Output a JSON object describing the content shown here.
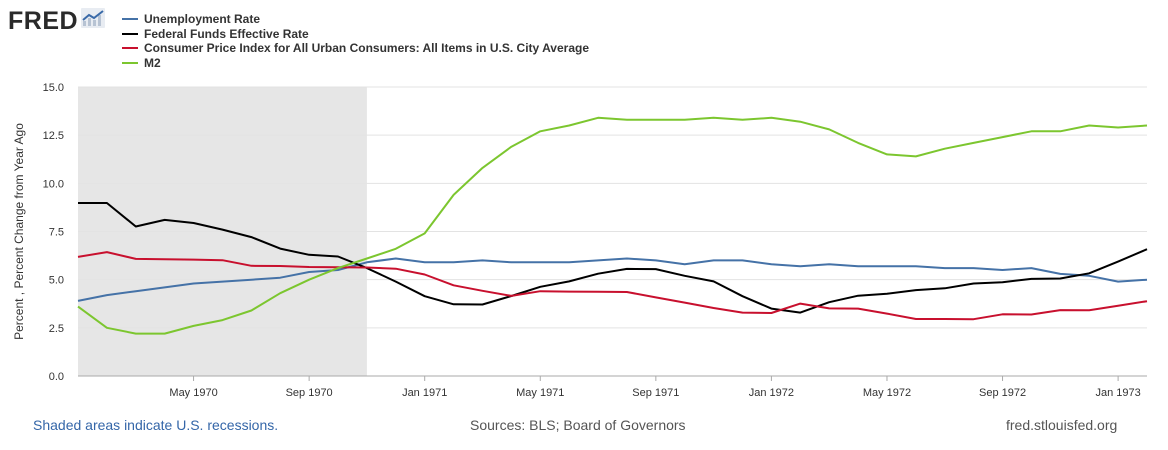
{
  "header": {
    "logo_text": "FRED",
    "logo_icon": "line-chart-icon"
  },
  "footer": {
    "recessions_note": "Shaded areas indicate U.S. recessions.",
    "sources": "Sources: BLS; Board of Governors",
    "site": "fred.stlouisfed.org"
  },
  "chart_data": {
    "type": "line",
    "ylabel": "Percent , Percent Change from Year Ago",
    "ylim": [
      0,
      15
    ],
    "yticks": [
      "0.0",
      "2.5",
      "5.0",
      "7.5",
      "10.0",
      "12.5",
      "15.0"
    ],
    "ytick_values": [
      0,
      2.5,
      5,
      7.5,
      10,
      12.5,
      15
    ],
    "grid": true,
    "legend_position": "top-left",
    "x_start": "1970-01",
    "x_end": "1973-02",
    "xticks": [
      "May 1970",
      "Sep 1970",
      "Jan 1971",
      "May 1971",
      "Sep 1971",
      "Jan 1972",
      "May 1972",
      "Sep 1972",
      "Jan 1973"
    ],
    "xtick_dates": [
      "1970-05",
      "1970-09",
      "1971-01",
      "1971-05",
      "1971-09",
      "1972-01",
      "1972-05",
      "1972-09",
      "1973-01"
    ],
    "recession": {
      "start": "1970-01",
      "end": "1970-11"
    },
    "recession_color": "#e6e6e6",
    "x": [
      "1970-01",
      "1970-02",
      "1970-03",
      "1970-04",
      "1970-05",
      "1970-06",
      "1970-07",
      "1970-08",
      "1970-09",
      "1970-10",
      "1970-11",
      "1970-12",
      "1971-01",
      "1971-02",
      "1971-03",
      "1971-04",
      "1971-05",
      "1971-06",
      "1971-07",
      "1971-08",
      "1971-09",
      "1971-10",
      "1971-11",
      "1971-12",
      "1972-01",
      "1972-02",
      "1972-03",
      "1972-04",
      "1972-05",
      "1972-06",
      "1972-07",
      "1972-08",
      "1972-09",
      "1972-10",
      "1972-11",
      "1972-12",
      "1973-01",
      "1973-02"
    ],
    "series": [
      {
        "name": "Unemployment Rate",
        "color": "#4572a7",
        "values": [
          3.9,
          4.2,
          4.4,
          4.6,
          4.8,
          4.9,
          5.0,
          5.1,
          5.4,
          5.5,
          5.9,
          6.1,
          5.9,
          5.9,
          6.0,
          5.9,
          5.9,
          5.9,
          6.0,
          6.1,
          6.0,
          5.8,
          6.0,
          6.0,
          5.8,
          5.7,
          5.8,
          5.7,
          5.7,
          5.7,
          5.6,
          5.6,
          5.5,
          5.6,
          5.3,
          5.2,
          4.9,
          5.0
        ]
      },
      {
        "name": "Federal Funds Effective Rate",
        "color": "#000000",
        "values": [
          8.98,
          8.98,
          7.76,
          8.1,
          7.94,
          7.6,
          7.21,
          6.61,
          6.29,
          6.2,
          5.6,
          4.9,
          4.14,
          3.72,
          3.71,
          4.15,
          4.63,
          4.91,
          5.31,
          5.56,
          5.55,
          5.2,
          4.91,
          4.14,
          3.5,
          3.29,
          3.83,
          4.17,
          4.27,
          4.46,
          4.55,
          4.8,
          4.87,
          5.04,
          5.06,
          5.33,
          5.94,
          6.58
        ]
      },
      {
        "name": "Consumer Price Index for All Urban Consumers: All Items in U.S. City Average",
        "color": "#c8102e",
        "values": [
          6.18,
          6.43,
          6.08,
          6.06,
          6.04,
          6.01,
          5.72,
          5.71,
          5.66,
          5.64,
          5.63,
          5.57,
          5.27,
          4.71,
          4.42,
          4.16,
          4.4,
          4.38,
          4.37,
          4.36,
          4.08,
          3.81,
          3.53,
          3.29,
          3.27,
          3.76,
          3.51,
          3.5,
          3.24,
          2.96,
          2.96,
          2.95,
          3.2,
          3.19,
          3.42,
          3.41,
          3.65,
          3.88
        ]
      },
      {
        "name": "M2",
        "color": "#7cc62f",
        "values": [
          3.6,
          2.5,
          2.2,
          2.2,
          2.6,
          2.9,
          3.4,
          4.3,
          5.0,
          5.6,
          6.1,
          6.6,
          7.4,
          9.4,
          10.8,
          11.9,
          12.7,
          13.0,
          13.4,
          13.3,
          13.3,
          13.3,
          13.4,
          13.3,
          13.4,
          13.2,
          12.8,
          12.1,
          11.5,
          11.4,
          11.8,
          12.1,
          12.4,
          12.7,
          12.7,
          13.0,
          12.9,
          13.0
        ]
      }
    ]
  }
}
